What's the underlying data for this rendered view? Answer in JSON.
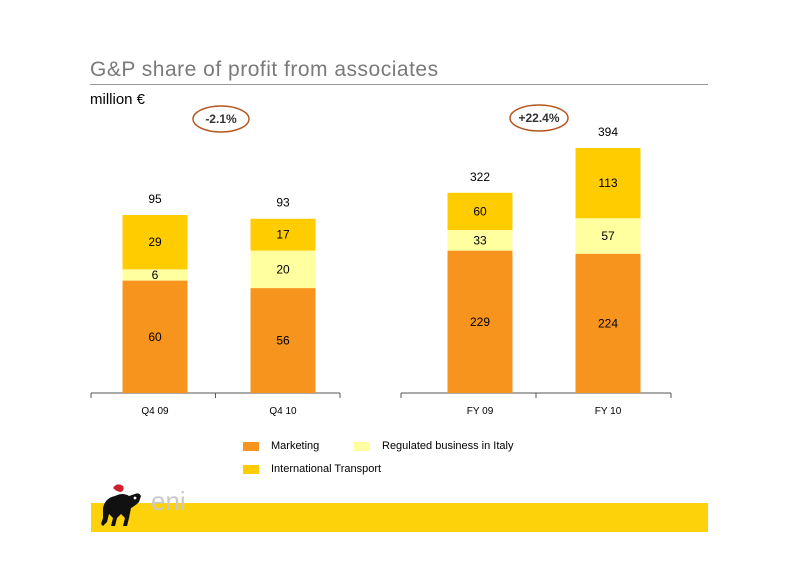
{
  "header": {
    "title": "G&P share of profit from associates",
    "unit": "million €"
  },
  "colors": {
    "marketing": "#F7941D",
    "regulated": "#FFFFA0",
    "transport": "#FFCC00",
    "badge_border": "#B5561E",
    "footer_bar": "#FDD20A"
  },
  "chart_data": [
    {
      "type": "bar",
      "stacked": true,
      "categories": [
        "Q4 09",
        "Q4 10"
      ],
      "series": [
        {
          "name": "Marketing",
          "values": [
            60,
            56
          ]
        },
        {
          "name": "Regulated business in Italy",
          "values": [
            6,
            20
          ]
        },
        {
          "name": "International Transport",
          "values": [
            29,
            17
          ]
        }
      ],
      "totals": [
        95,
        93
      ],
      "change_badge": "-2.1%",
      "ylim": [
        0,
        100
      ]
    },
    {
      "type": "bar",
      "stacked": true,
      "categories": [
        "FY 09",
        "FY 10"
      ],
      "series": [
        {
          "name": "Marketing",
          "values": [
            229,
            224
          ]
        },
        {
          "name": "Regulated business in Italy",
          "values": [
            33,
            57
          ]
        },
        {
          "name": "International Transport",
          "values": [
            60,
            113
          ]
        }
      ],
      "totals": [
        322,
        394
      ],
      "change_badge": "+22.4%",
      "ylim": [
        0,
        400
      ]
    }
  ],
  "legend": [
    {
      "label": "Marketing",
      "color": "#F7941D"
    },
    {
      "label": "Regulated business in Italy",
      "color": "#FFFFA0"
    },
    {
      "label": "International Transport",
      "color": "#FFCC00"
    }
  ],
  "logo": {
    "text": "eni",
    "icon": "six-legged-dog-icon"
  }
}
